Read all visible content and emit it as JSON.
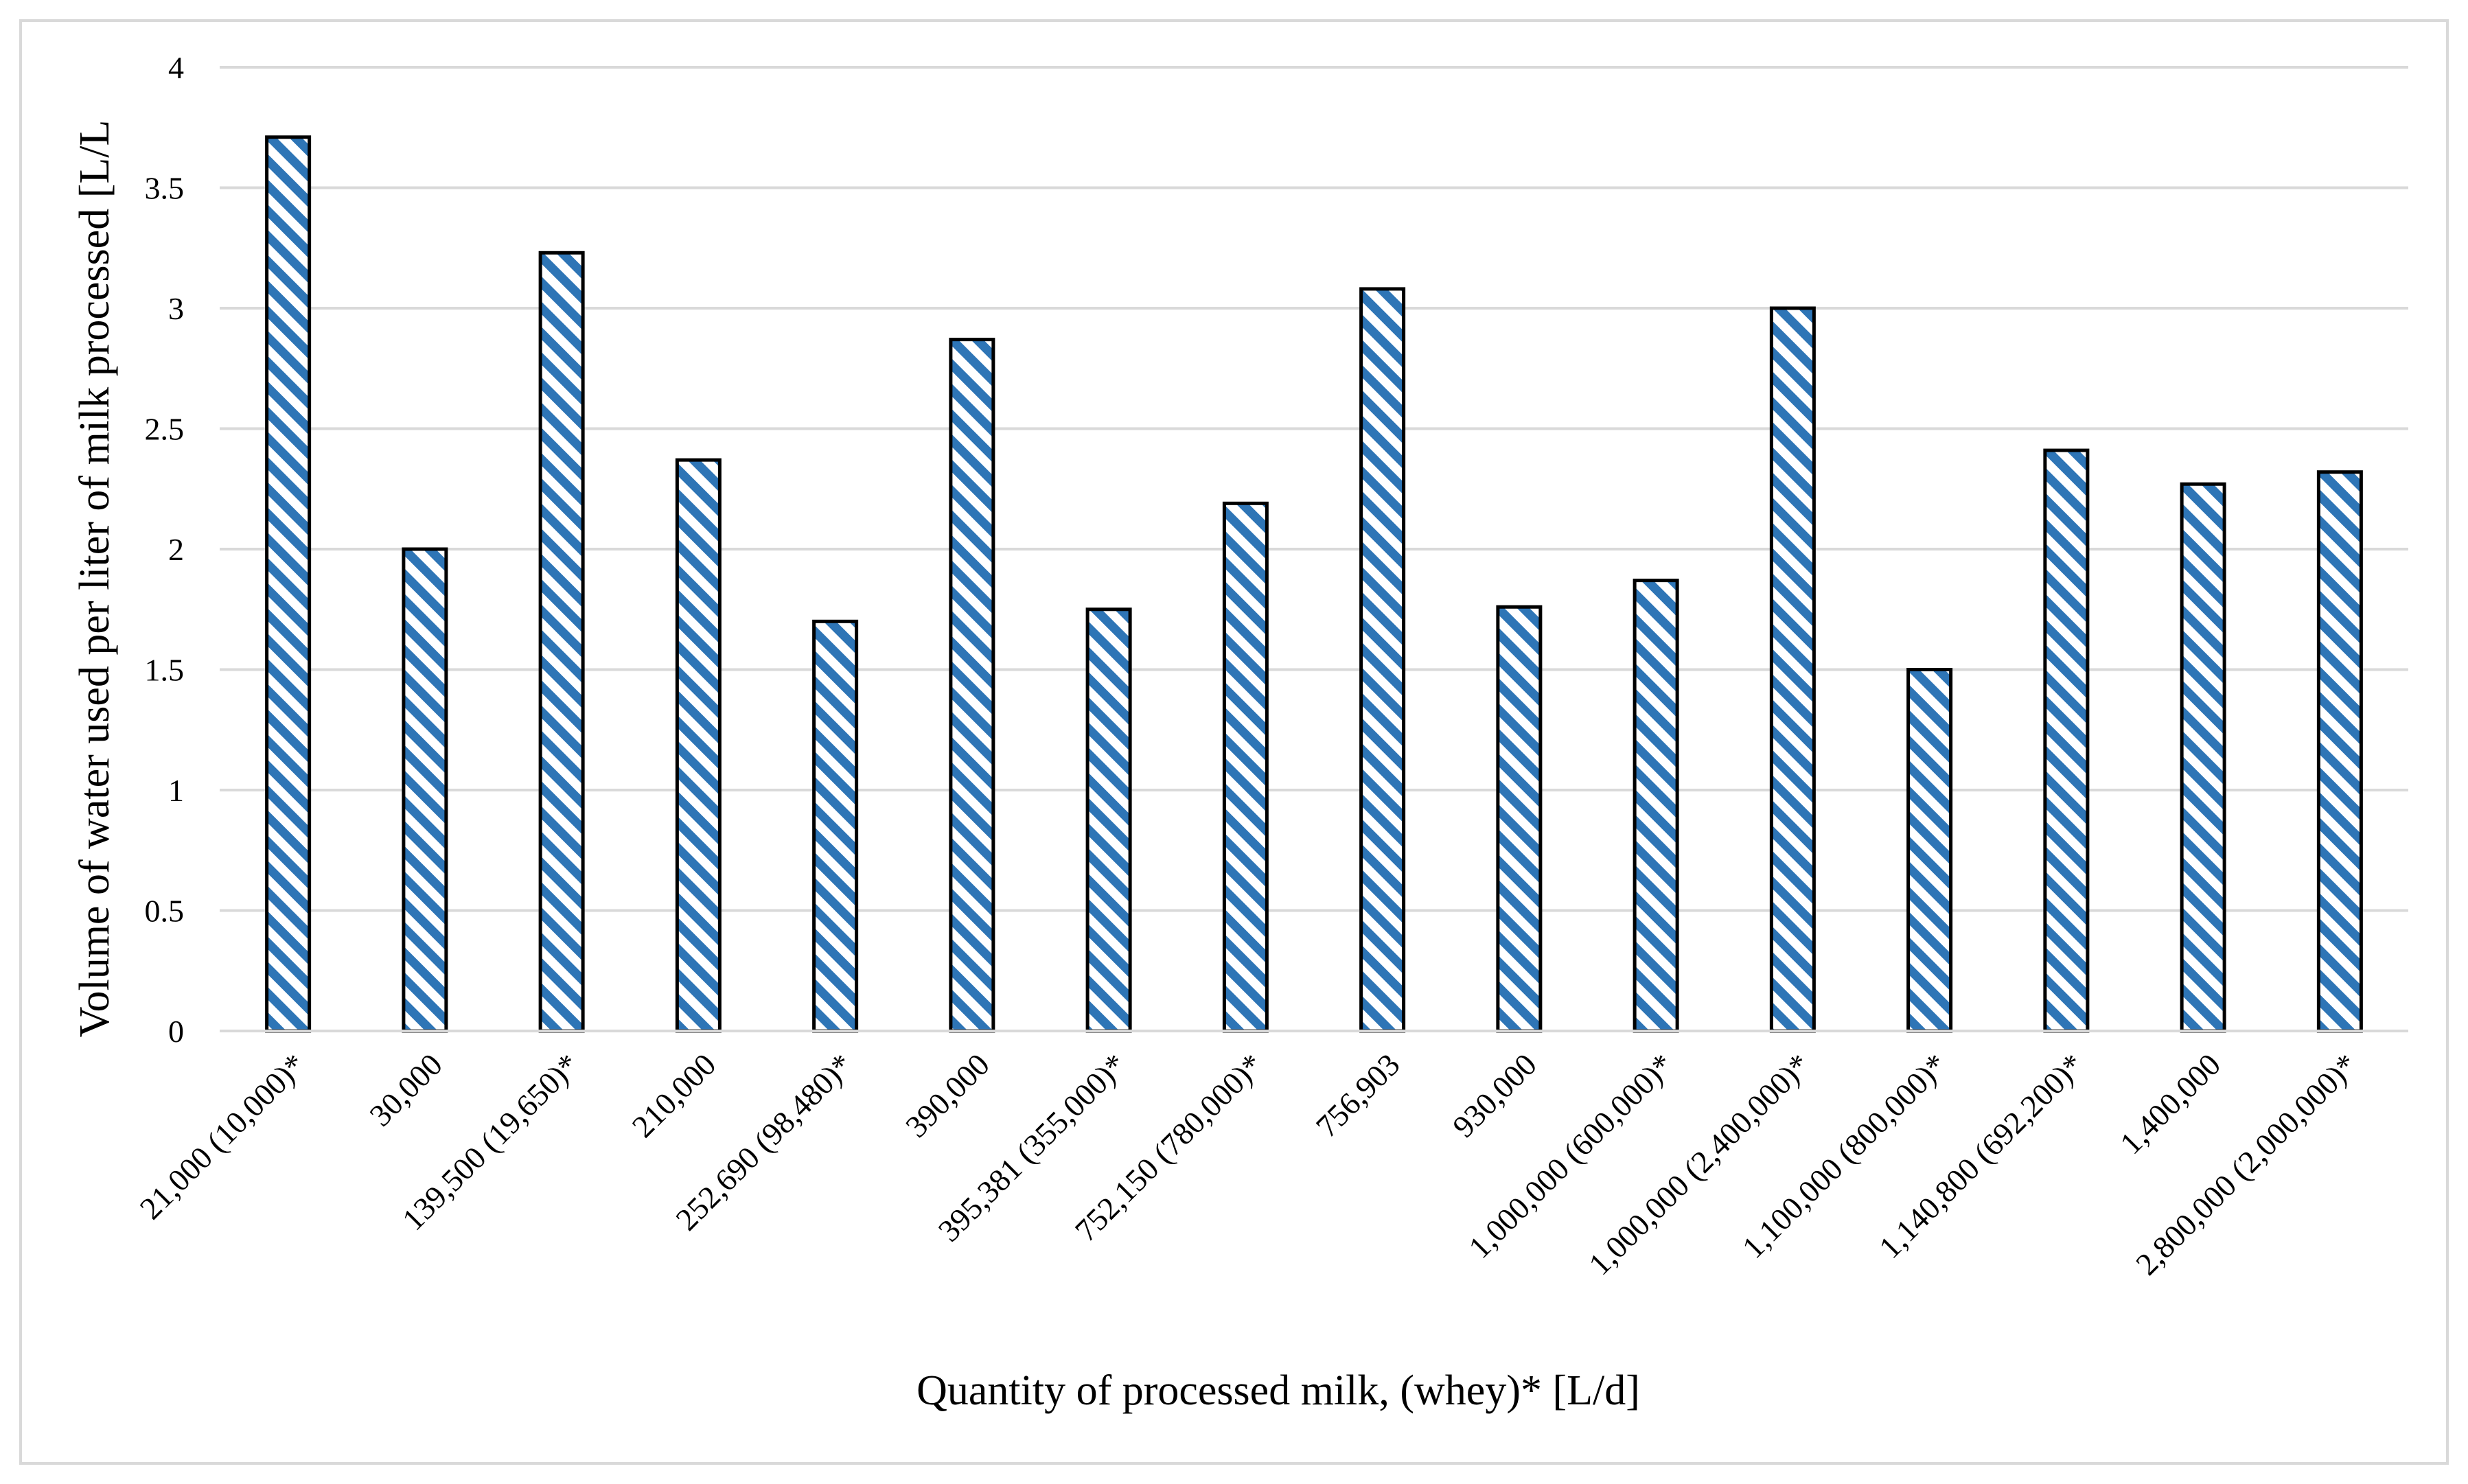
{
  "chart_data": {
    "type": "bar",
    "title": "",
    "xlabel": "Quantity of processed milk, (whey)* [L/d]",
    "ylabel": "Volume of water used per liter of milk processed [L/L",
    "ylim": [
      0,
      4
    ],
    "yticks": [
      "0",
      "0.5",
      "1",
      "1.5",
      "2",
      "2.5",
      "3",
      "3.5",
      "4"
    ],
    "grid": true,
    "legend": "none",
    "bar_fill": "#2e75b6",
    "bar_stripe_bg": "#ffffff",
    "bar_border": "#000000",
    "gridline_color": "#d9d9d9",
    "categories": [
      "21,000 (10,000)*",
      "30,000",
      "139,500 (19,650)*",
      "210,000",
      "252,690 (98,480)*",
      "390,000",
      "395,381 (355,000)*",
      "752,150 (780,000)*",
      "756,903",
      "930,000",
      "1,000,000 (600,000)*",
      "1,000,000 (2,400,000)*",
      "1,100,000 (800,000)*",
      "1,140,800 (692,200)*",
      "1,400,000",
      "2,800,000 (2,000,000)*"
    ],
    "values": [
      3.71,
      2.0,
      3.23,
      2.37,
      1.7,
      2.87,
      1.75,
      2.19,
      3.08,
      1.76,
      1.87,
      3.0,
      1.5,
      2.41,
      2.27,
      2.32
    ]
  }
}
